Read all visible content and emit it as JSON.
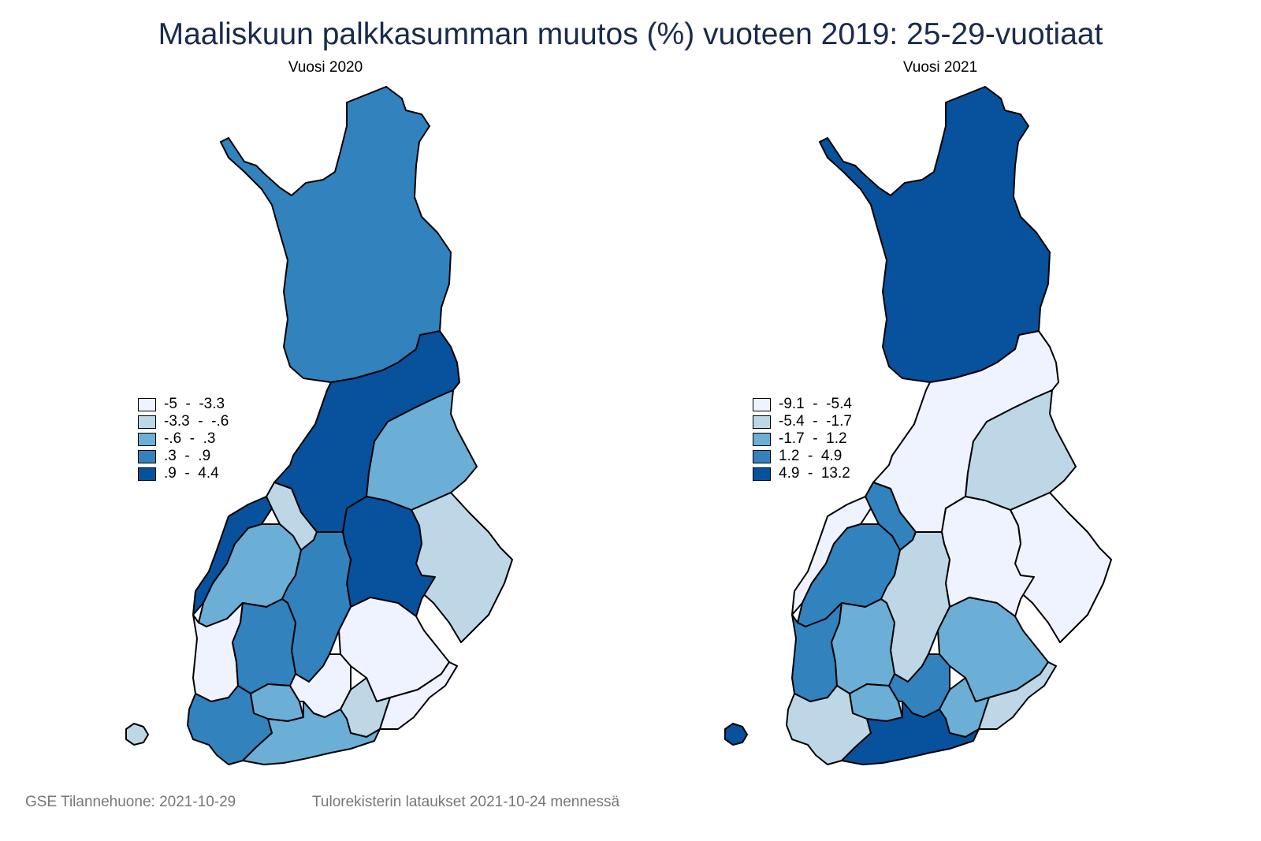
{
  "title": "Maaliskuun palkkasumman muutos (%) vuoteen 2019: 25-29-vuotiaat",
  "colors": {
    "c1": "#eff3ff",
    "c2": "#bdd7e7",
    "c3": "#6baed6",
    "c4": "#3182bd",
    "c5": "#08519c",
    "title": "#1a2b4c",
    "footer": "#777777"
  },
  "panels": [
    {
      "subtitle": "Vuosi 2020",
      "legend": [
        {
          "label": "-5  -  -3.3",
          "color": "#eff3ff"
        },
        {
          "label": "-3.3  -  -.6",
          "color": "#bdd7e7"
        },
        {
          "label": "-.6  -  .3",
          "color": "#6baed6"
        },
        {
          "label": ".3  -  .9",
          "color": "#3182bd"
        },
        {
          "label": ".9  -  4.4",
          "color": "#08519c"
        }
      ],
      "regions": {
        "lappi": "#3182bd",
        "pohjois-pohjanmaa": "#08519c",
        "kainuu": "#6baed6",
        "pohjois-karjala": "#bdd7e7",
        "pohjois-savo": "#08519c",
        "keski-pohjanmaa": "#bdd7e7",
        "pohjanmaa": "#08519c",
        "etela-pohjanmaa": "#6baed6",
        "keski-suomi": "#3182bd",
        "etela-savo": "#eff3ff",
        "satakunta": "#eff3ff",
        "pirkanmaa": "#3182bd",
        "kanta-hame": "#6baed6",
        "paijat-hame": "#eff3ff",
        "kymenlaakso": "#bdd7e7",
        "etela-karjala": "#eff3ff",
        "varsinais-suomi": "#3182bd",
        "uusimaa": "#6baed6",
        "ahvenanmaa": "#bdd7e7"
      }
    },
    {
      "subtitle": "Vuosi 2021",
      "legend": [
        {
          "label": "-9.1  -  -5.4",
          "color": "#eff3ff"
        },
        {
          "label": "-5.4  -  -1.7",
          "color": "#bdd7e7"
        },
        {
          "label": "-1.7  -  1.2",
          "color": "#6baed6"
        },
        {
          "label": "1.2  -  4.9",
          "color": "#3182bd"
        },
        {
          "label": "4.9  -  13.2",
          "color": "#08519c"
        }
      ],
      "regions": {
        "lappi": "#08519c",
        "pohjois-pohjanmaa": "#eff3ff",
        "kainuu": "#bdd7e7",
        "pohjois-karjala": "#eff3ff",
        "pohjois-savo": "#eff3ff",
        "keski-pohjanmaa": "#3182bd",
        "pohjanmaa": "#eff3ff",
        "etela-pohjanmaa": "#3182bd",
        "keski-suomi": "#bdd7e7",
        "etela-savo": "#6baed6",
        "satakunta": "#3182bd",
        "pirkanmaa": "#6baed6",
        "kanta-hame": "#6baed6",
        "paijat-hame": "#3182bd",
        "kymenlaakso": "#6baed6",
        "etela-karjala": "#bdd7e7",
        "varsinais-suomi": "#bdd7e7",
        "uusimaa": "#08519c",
        "ahvenanmaa": "#08519c"
      }
    }
  ],
  "footer": {
    "source": "GSE Tilannehuone: 2021-10-29",
    "note": "Tulorekisterin lataukset 2021-10-24 mennessä"
  }
}
